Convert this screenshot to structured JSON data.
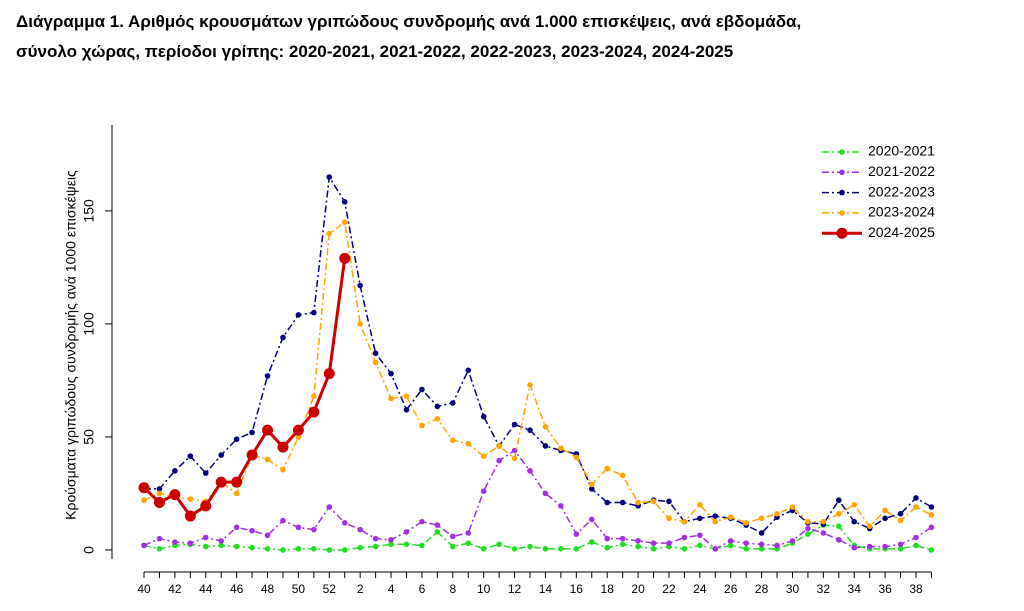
{
  "chart_data": {
    "type": "line",
    "title_lines": [
      "Διάγραμμα 1. Αριθμός κρουσμάτων γριπώδους συνδρομής ανά 1.000 επισκέψεις, ανά εβδομάδα,",
      "σύνολο χώρας, περίοδοι γρίπης: 2020-2021, 2021-2022, 2022-2023, 2023-2024, 2024-2025"
    ],
    "y_label": "Κρούσματα γριπώδους συνδρομής ανά 1000 επισκέψεις",
    "categories": [
      "40",
      null,
      "42",
      null,
      "44",
      null,
      "46",
      null,
      "48",
      null,
      "50",
      null,
      "52",
      null,
      "2",
      null,
      "4",
      null,
      "6",
      null,
      "8",
      null,
      "10",
      null,
      "12",
      null,
      "14",
      null,
      "16",
      null,
      "18",
      null,
      "20",
      null,
      "22",
      null,
      "24",
      null,
      "26",
      null,
      "28",
      null,
      "30",
      null,
      "32",
      null,
      "34",
      null,
      "36",
      null,
      "38",
      null
    ],
    "ylim": [
      -4,
      188
    ],
    "yticks": [
      0,
      50,
      100,
      150
    ],
    "legend": "top-right",
    "series": [
      {
        "name": "2020-2021",
        "color": "#22dd22",
        "linestyle": "dashed",
        "values": [
          2,
          0.5,
          2,
          2.5,
          1.5,
          2,
          1.5,
          1,
          0.5,
          0,
          0.5,
          0.5,
          0,
          0,
          1,
          1.5,
          2.5,
          2.5,
          2,
          8,
          1.5,
          3,
          0.5,
          2.5,
          0.5,
          1.5,
          0.5,
          0.5,
          0.5,
          3.5,
          1,
          2.5,
          1.5,
          0.5,
          1.5,
          0.5,
          2,
          0.5,
          2,
          0.5,
          0.5,
          0.5,
          3,
          7,
          11,
          10.5,
          2,
          0.5,
          0.5,
          0.5,
          2,
          0
        ]
      },
      {
        "name": "2021-2022",
        "color": "#a030e0",
        "linestyle": "dashed",
        "values": [
          2,
          5,
          3.5,
          3,
          5.5,
          4,
          10,
          8.5,
          6.5,
          13,
          10,
          9,
          19,
          12,
          9,
          5,
          4.5,
          8,
          12.5,
          11,
          6,
          7.5,
          26,
          39.5,
          44,
          35,
          25,
          19.5,
          7,
          13.5,
          5,
          5,
          4,
          3,
          3,
          5.5,
          6.5,
          0.5,
          4,
          3,
          2.5,
          2,
          4,
          9.5,
          7.5,
          4.5,
          1,
          1.5,
          1.5,
          2.5,
          5.5,
          10
        ]
      },
      {
        "name": "2022-2023",
        "color": "#000080",
        "linestyle": "dashed",
        "values": [
          27,
          27,
          35,
          41.5,
          34,
          42,
          49,
          52,
          77,
          94,
          104,
          105,
          165,
          154,
          117,
          87,
          78,
          62,
          71,
          63.5,
          65,
          79.5,
          59,
          46,
          55.5,
          53,
          46,
          44,
          42.5,
          27,
          21,
          21,
          19.5,
          22,
          21.5,
          12.5,
          14,
          15,
          14,
          11,
          7.5,
          14.5,
          17.5,
          12,
          11.5,
          22,
          12.5,
          9.5,
          14,
          16,
          23,
          19
        ]
      },
      {
        "name": "2023-2024",
        "color": "#ffa500",
        "linestyle": "dashed",
        "values": [
          22,
          25,
          23.5,
          22.5,
          21.5,
          30,
          25,
          42,
          40,
          35.5,
          50,
          68,
          140,
          145,
          100,
          83,
          67,
          68,
          55,
          58,
          48.5,
          47,
          41.5,
          46,
          40.5,
          73,
          54.5,
          45,
          41,
          29,
          36,
          33,
          21,
          21.5,
          14,
          12.5,
          20,
          12.5,
          14.5,
          12,
          14,
          16,
          19,
          12.5,
          12.5,
          16,
          20,
          10.5,
          17.5,
          13,
          19,
          15.5
        ]
      },
      {
        "name": "2024-2025",
        "color": "#cc0000",
        "linestyle": "solid",
        "values": [
          27.5,
          21,
          24.5,
          15,
          19.5,
          30,
          30,
          42,
          53,
          45.5,
          53,
          61,
          78,
          129,
          null,
          null,
          null,
          null,
          null,
          null,
          null,
          null,
          null,
          null,
          null,
          null,
          null,
          null,
          null,
          null,
          null,
          null,
          null,
          null,
          null,
          null,
          null,
          null,
          null,
          null,
          null,
          null,
          null,
          null,
          null,
          null,
          null,
          null,
          null,
          null,
          null,
          null
        ]
      }
    ]
  }
}
